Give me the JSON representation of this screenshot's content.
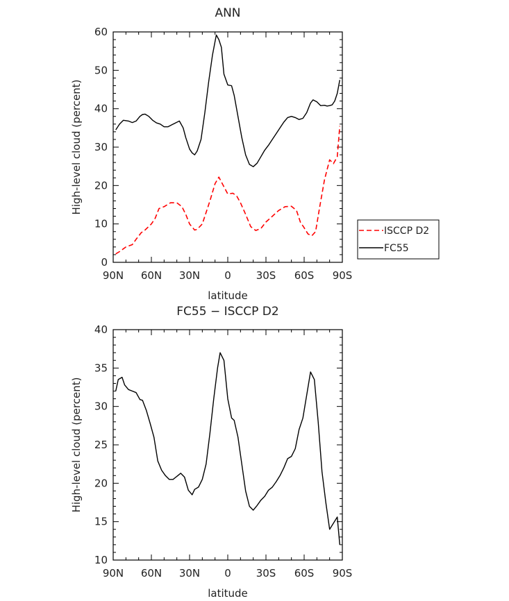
{
  "chart_data": [
    {
      "type": "line",
      "title": "ANN",
      "xlabel": "latitude",
      "ylabel": "High-level cloud (percent)",
      "xlim": [
        -90,
        90
      ],
      "ylim": [
        0,
        60
      ],
      "x_ticks": [
        "90N",
        "60N",
        "30N",
        "0",
        "30S",
        "60S",
        "90S"
      ],
      "y_ticks": [
        "0",
        "10",
        "20",
        "30",
        "40",
        "50",
        "60"
      ],
      "grid": false,
      "legend_position": "outside-right",
      "legend": [
        "ISCCP D2",
        "FC55"
      ],
      "series": [
        {
          "name": "ISCCP D2",
          "color": "#ff0000",
          "style": "dashed",
          "x": [
            -88,
            -85,
            -80,
            -75,
            -72,
            -68,
            -65,
            -60,
            -57,
            -54,
            -50,
            -45,
            -40,
            -36,
            -33,
            -30,
            -26,
            -24,
            -20,
            -18,
            -14,
            -10,
            -7,
            -4,
            0,
            4,
            7,
            10,
            14,
            18,
            22,
            26,
            30,
            35,
            40,
            45,
            50,
            54,
            57,
            60,
            63,
            66,
            69,
            72,
            76,
            80,
            83,
            86,
            88
          ],
          "y": [
            2.2,
            2.8,
            4.0,
            4.6,
            6.0,
            7.7,
            8.4,
            10.0,
            11.5,
            14.0,
            14.5,
            15.5,
            15.5,
            14.5,
            12.5,
            10.0,
            8.4,
            8.6,
            10.0,
            12.0,
            16.0,
            20.5,
            22.2,
            20.3,
            17.8,
            18.0,
            17.3,
            15.5,
            12.5,
            9.3,
            8.3,
            8.8,
            10.5,
            12.0,
            13.5,
            14.5,
            14.6,
            13.5,
            10.5,
            9.0,
            7.4,
            6.9,
            8.0,
            14.0,
            21.5,
            26.7,
            25.7,
            27.5,
            35.5
          ]
        },
        {
          "name": "FC55",
          "color": "#000000",
          "style": "solid",
          "x": [
            -88,
            -85,
            -82,
            -78,
            -75,
            -72,
            -69,
            -67,
            -65,
            -62,
            -59,
            -56,
            -53,
            -50,
            -47,
            -44,
            -41,
            -38,
            -35,
            -33,
            -30,
            -28,
            -26,
            -24,
            -21,
            -18,
            -15,
            -12,
            -9,
            -7,
            -5,
            -3,
            0,
            3,
            5,
            8,
            11,
            14,
            17,
            20,
            23,
            26,
            29,
            32,
            35,
            38,
            41,
            44,
            47,
            50,
            53,
            56,
            59,
            62,
            65,
            67,
            70,
            73,
            76,
            78,
            80,
            82,
            84,
            86,
            88
          ],
          "y": [
            34.5,
            36.0,
            37.0,
            36.8,
            36.4,
            36.8,
            38.0,
            38.5,
            38.6,
            38.0,
            37.0,
            36.3,
            36.0,
            35.3,
            35.3,
            35.8,
            36.3,
            36.8,
            35.0,
            32.5,
            29.5,
            28.5,
            28.0,
            29.0,
            32.0,
            39.0,
            47.0,
            54.0,
            59.2,
            58.0,
            56.0,
            49.0,
            46.2,
            46.0,
            43.5,
            38.0,
            32.5,
            28.0,
            25.5,
            24.9,
            25.8,
            27.5,
            29.2,
            30.5,
            32.0,
            33.5,
            35.0,
            36.5,
            37.7,
            38.0,
            37.7,
            37.2,
            37.5,
            39.0,
            41.5,
            42.3,
            41.8,
            40.8,
            40.9,
            40.7,
            40.8,
            41.0,
            42.0,
            44.0,
            47.5
          ]
        }
      ]
    },
    {
      "type": "line",
      "title": "FC55 − ISCCP D2",
      "xlabel": "latitude",
      "ylabel": "High-level cloud (percent)",
      "xlim": [
        -90,
        90
      ],
      "ylim": [
        10,
        40
      ],
      "x_ticks": [
        "90N",
        "60N",
        "30N",
        "0",
        "30S",
        "60S",
        "90S"
      ],
      "y_ticks": [
        "10",
        "15",
        "20",
        "25",
        "30",
        "35",
        "40"
      ],
      "grid": false,
      "series": [
        {
          "color": "#000000",
          "style": "solid",
          "x": [
            -88,
            -86,
            -83,
            -81,
            -78,
            -75,
            -72,
            -69,
            -67,
            -64,
            -61,
            -58,
            -55,
            -52,
            -49,
            -46,
            -43,
            -40,
            -37,
            -34,
            -31,
            -28,
            -26,
            -23,
            -20,
            -17,
            -14,
            -11,
            -8,
            -6,
            -3,
            0,
            3,
            5,
            8,
            11,
            14,
            17,
            20,
            23,
            26,
            29,
            32,
            35,
            38,
            41,
            44,
            47,
            50,
            53,
            56,
            59,
            62,
            65,
            68,
            71,
            74,
            77,
            80,
            83,
            86,
            88
          ],
          "y": [
            32.0,
            33.5,
            33.8,
            32.8,
            32.2,
            32.0,
            31.8,
            30.9,
            30.8,
            29.5,
            27.8,
            26.0,
            22.9,
            21.7,
            21.0,
            20.5,
            20.5,
            20.9,
            21.3,
            20.8,
            19.1,
            18.5,
            19.2,
            19.5,
            20.5,
            22.5,
            26.5,
            31.0,
            35.0,
            37.0,
            36.0,
            31.0,
            28.5,
            28.2,
            26.0,
            22.5,
            19.0,
            17.0,
            16.5,
            17.1,
            17.8,
            18.3,
            19.1,
            19.5,
            20.2,
            21.0,
            22.0,
            23.2,
            23.5,
            24.5,
            27.0,
            28.5,
            31.5,
            34.5,
            33.5,
            28.0,
            21.5,
            17.5,
            14.0,
            14.8,
            15.6,
            12.0
          ]
        }
      ]
    }
  ]
}
